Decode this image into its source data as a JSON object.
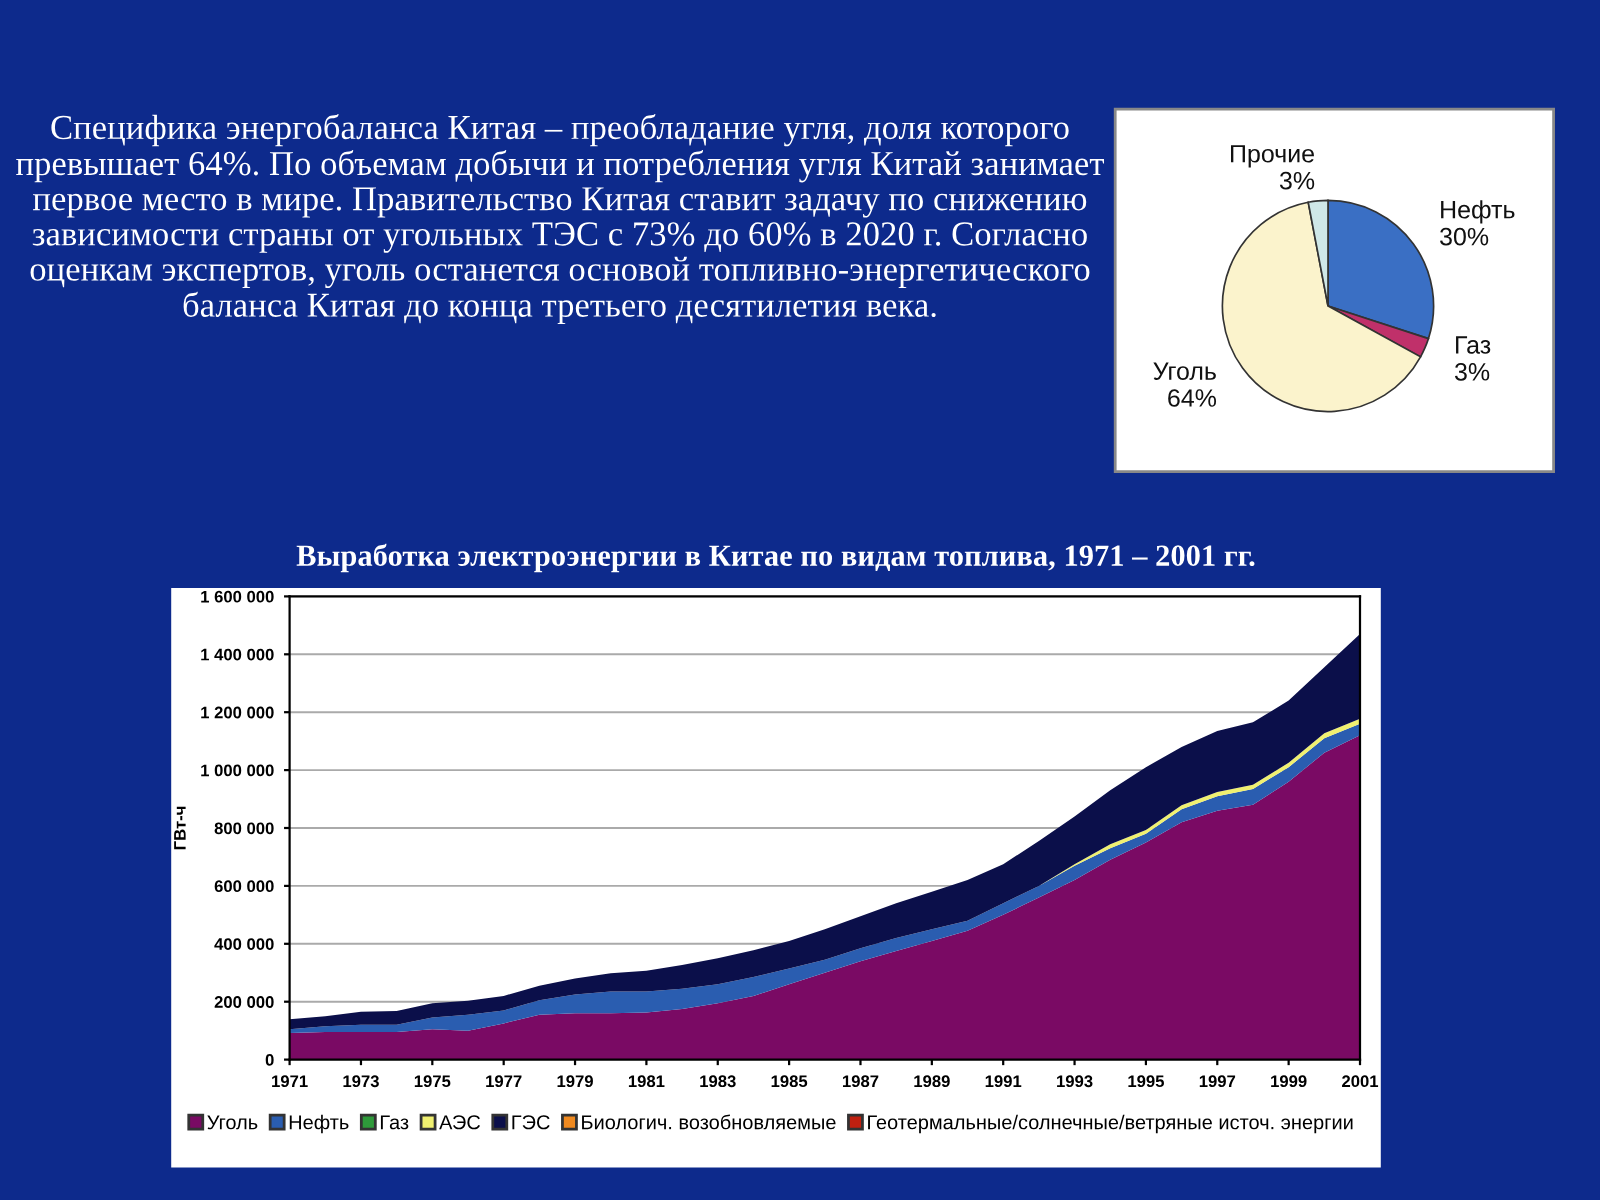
{
  "chart_data": [
    {
      "type": "other",
      "title": "Специфика энергобаланса Китая – преобладание угля, доля которого превышает 64%. По объемам добычи и потребления угля Китай занимает первое место в мире. Правительство Китая ставит задачу по снижению зависимости страны от угольных ТЭС с 73% до 60% в 2020 г. Согласно оценкам экспертов, уголь останется основой топливно-энергетического баланса Китая до конца третьего десятилетия века."
    },
    {
      "type": "pie",
      "categories": [
        "Нефть",
        "Газ",
        "Уголь",
        "Прочие"
      ],
      "values": [
        30,
        3,
        64,
        3
      ],
      "value_labels": [
        "30%",
        "3%",
        "64%",
        "3%"
      ],
      "colors": [
        "#3a6fc4",
        "#c0306a",
        "#fbf3cc",
        "#cfe8e8"
      ],
      "legend": false
    },
    {
      "type": "area",
      "stacked": true,
      "title": "Выработка электроэнергии в Китае по видам топлива, 1971 – 2001 гг.",
      "ylabel": "ГВт-ч",
      "x": [
        1971,
        1972,
        1973,
        1974,
        1975,
        1976,
        1977,
        1978,
        1979,
        1980,
        1981,
        1982,
        1983,
        1984,
        1985,
        1986,
        1987,
        1988,
        1989,
        1990,
        1991,
        1992,
        1993,
        1994,
        1995,
        1996,
        1997,
        1998,
        1999,
        2000,
        2001
      ],
      "series": [
        {
          "name": "Уголь",
          "color": "#7a0a64",
          "values": [
            92000,
            95000,
            95000,
            95000,
            105000,
            100000,
            125000,
            155000,
            160000,
            160000,
            163000,
            175000,
            195000,
            220000,
            260000,
            300000,
            340000,
            375000,
            410000,
            445000,
            500000,
            560000,
            620000,
            690000,
            750000,
            820000,
            860000,
            880000,
            960000,
            1060000,
            1120000
          ]
        },
        {
          "name": "Нефть",
          "color": "#2a5db0",
          "values": [
            13000,
            20000,
            25000,
            25000,
            40000,
            55000,
            45000,
            50000,
            65000,
            75000,
            72000,
            70000,
            65000,
            65000,
            55000,
            45000,
            45000,
            45000,
            40000,
            35000,
            40000,
            40000,
            50000,
            40000,
            30000,
            45000,
            50000,
            55000,
            50000,
            50000,
            40000
          ]
        },
        {
          "name": "Газ",
          "color": "#2e9a3a",
          "values": [
            null,
            null,
            null,
            null,
            null,
            null,
            null,
            null,
            null,
            null,
            null,
            null,
            null,
            null,
            null,
            null,
            null,
            null,
            null,
            null,
            null,
            null,
            null,
            null,
            null,
            null,
            null,
            null,
            null,
            null,
            null
          ]
        },
        {
          "name": "АЭС",
          "color": "#f0f070",
          "values": [
            0,
            0,
            0,
            0,
            0,
            0,
            0,
            0,
            0,
            0,
            0,
            0,
            0,
            0,
            0,
            0,
            0,
            0,
            0,
            0,
            0,
            0,
            5000,
            14000,
            13000,
            14000,
            14000,
            14000,
            15000,
            17000,
            17000
          ]
        },
        {
          "name": "ГЭС",
          "color": "#0b0f4a",
          "values": [
            34000,
            35000,
            45000,
            48000,
            50000,
            48000,
            50000,
            50000,
            55000,
            63000,
            72000,
            82000,
            90000,
            93000,
            95000,
            105000,
            110000,
            120000,
            130000,
            140000,
            135000,
            155000,
            165000,
            186000,
            217000,
            201000,
            211000,
            216000,
            215000,
            228000,
            293000
          ]
        },
        {
          "name": "Биологич. возобновляемые",
          "color": "#f08a20",
          "values": [
            null,
            null,
            null,
            null,
            null,
            null,
            null,
            null,
            null,
            null,
            null,
            null,
            null,
            null,
            null,
            null,
            null,
            null,
            null,
            null,
            null,
            null,
            null,
            null,
            null,
            null,
            null,
            null,
            null,
            null,
            null
          ]
        },
        {
          "name": "Геотермальные/солнечные/ветряные источ. энергии",
          "color": "#c02010",
          "values": [
            null,
            null,
            null,
            null,
            null,
            null,
            null,
            null,
            null,
            null,
            null,
            null,
            null,
            null,
            null,
            null,
            null,
            null,
            null,
            null,
            null,
            null,
            null,
            null,
            null,
            null,
            null,
            null,
            null,
            null,
            null
          ]
        }
      ],
      "xlim": [
        1971,
        2001
      ],
      "xticks": [
        1971,
        1973,
        1975,
        1977,
        1979,
        1981,
        1983,
        1985,
        1987,
        1989,
        1991,
        1993,
        1995,
        1997,
        1999,
        2001
      ],
      "ylim": [
        0,
        1600000
      ],
      "yticks": [
        {
          "value": 0,
          "label": "0"
        },
        {
          "value": 200000,
          "label": "200 000"
        },
        {
          "value": 400000,
          "label": "400 000"
        },
        {
          "value": 600000,
          "label": "600 000"
        },
        {
          "value": 800000,
          "label": "800 000"
        },
        {
          "value": 1000000,
          "label": "1 000 000"
        },
        {
          "value": 1200000,
          "label": "1 200 000"
        },
        {
          "value": 1400000,
          "label": "1 400 000"
        },
        {
          "value": 1600000,
          "label": "1 600 000"
        }
      ],
      "grid": "y",
      "legend": "bottom"
    }
  ]
}
